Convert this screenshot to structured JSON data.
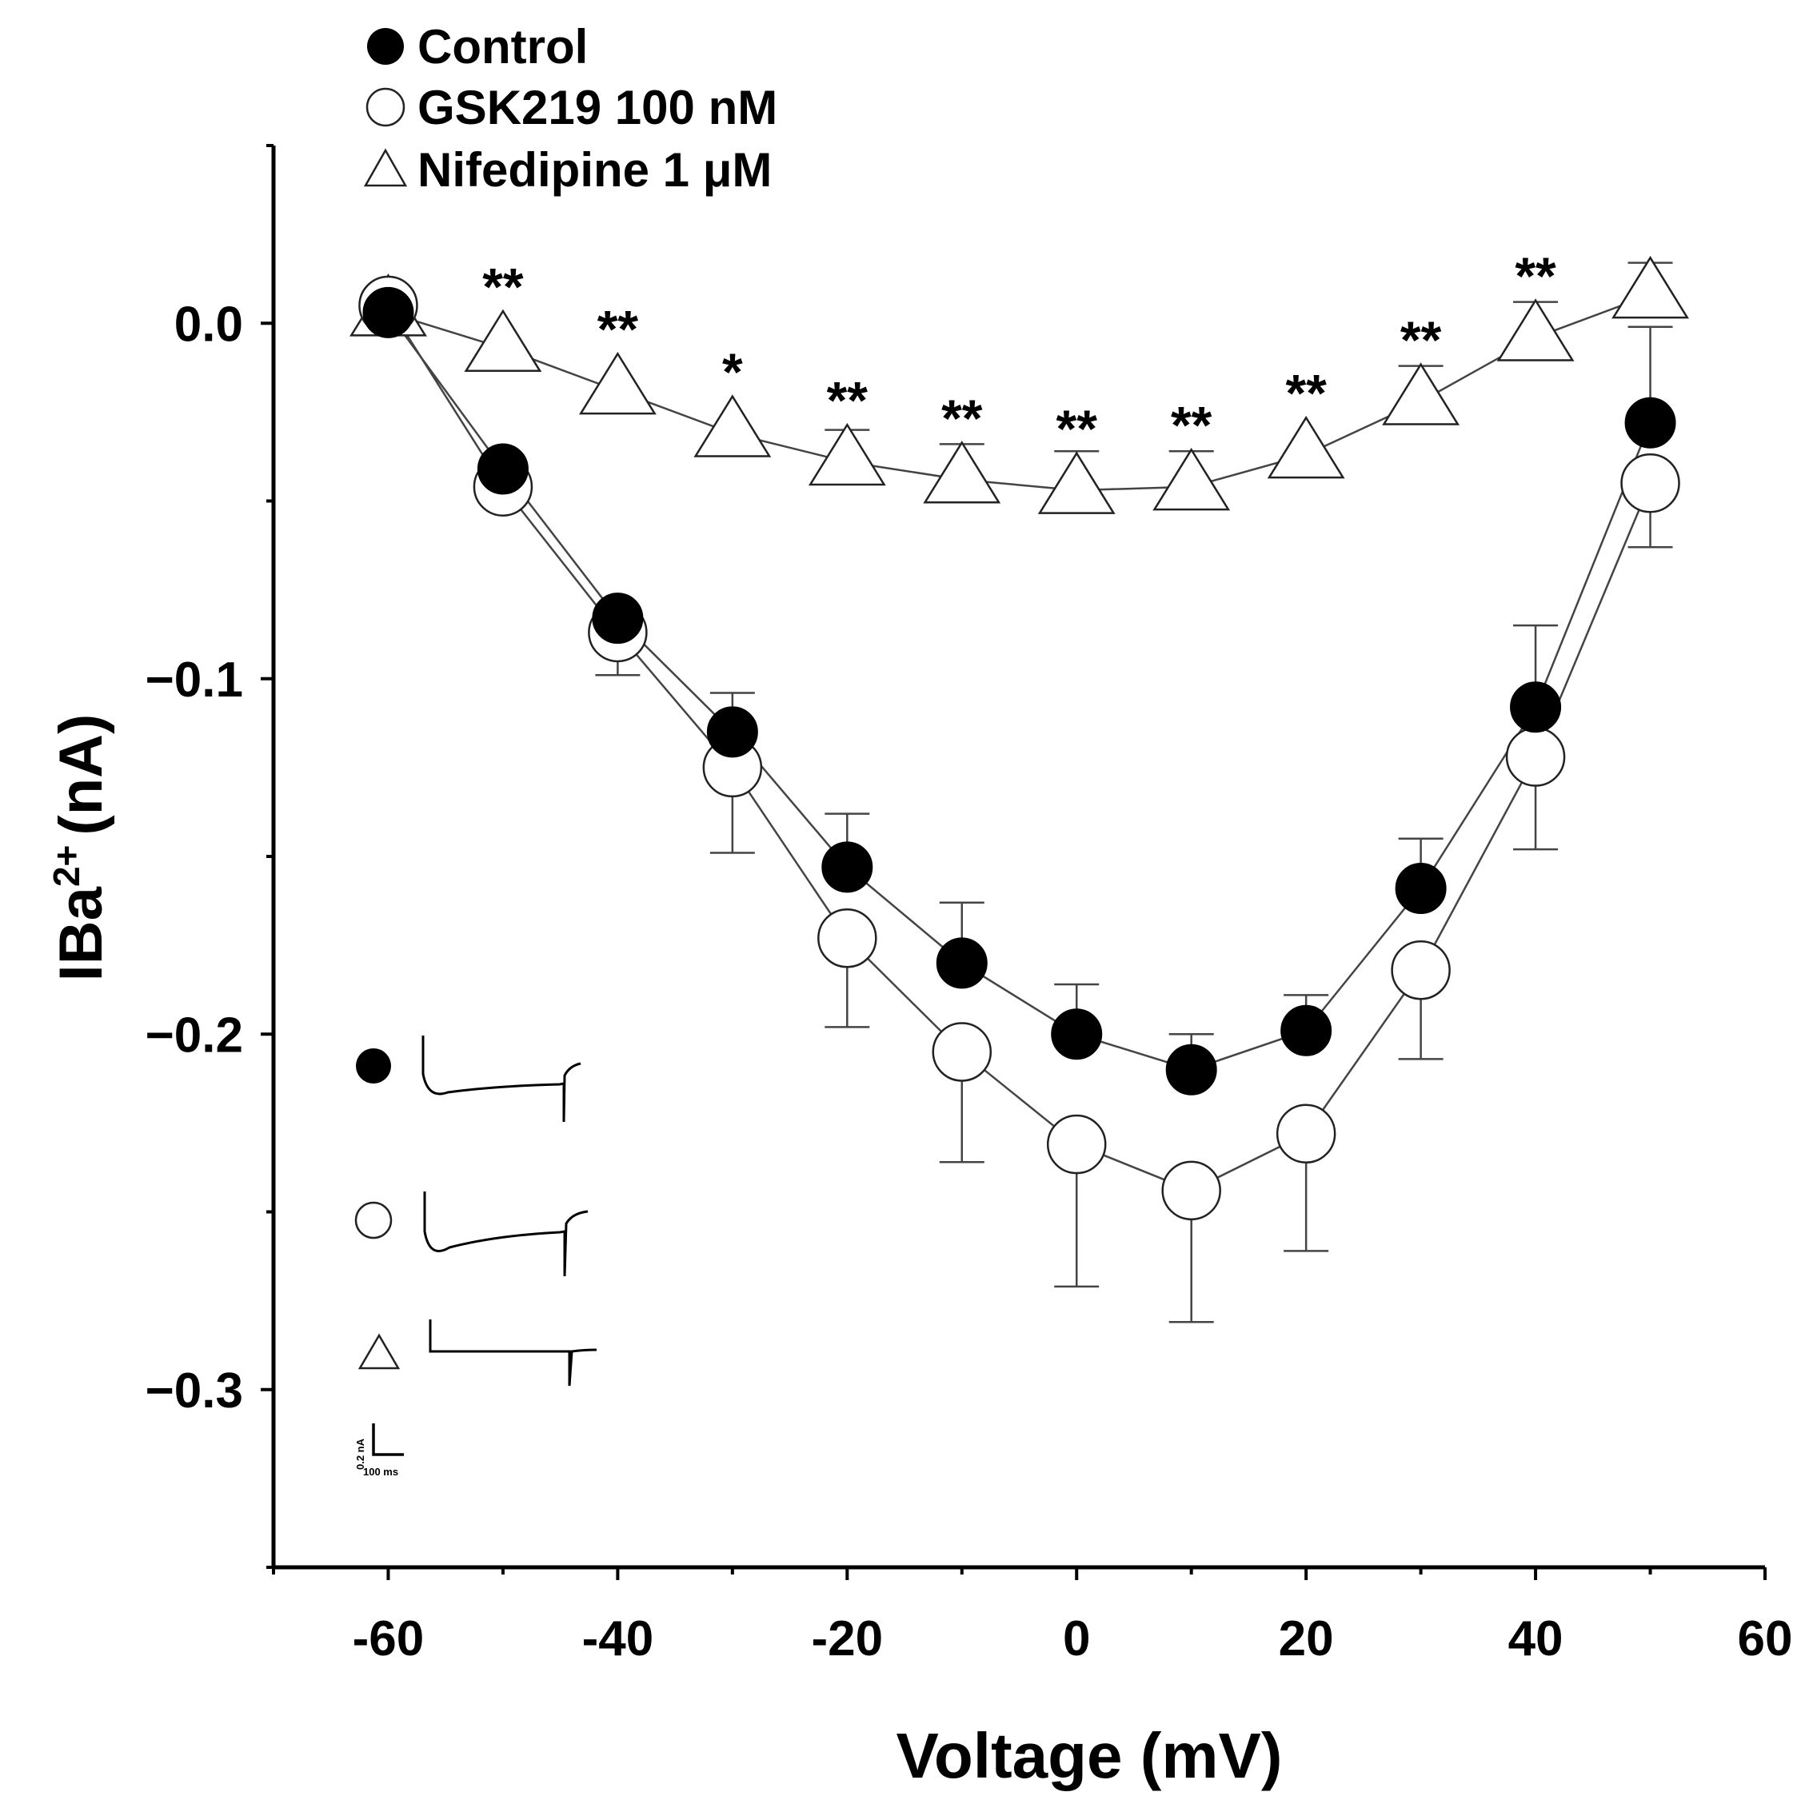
{
  "chart_data": {
    "type": "line",
    "title": "",
    "xlabel": "Voltage (mV)",
    "ylabel": "IBa",
    "ylabel_superscript": "2+",
    "ylabel_unit": "(nA)",
    "xlim": [
      -70,
      60
    ],
    "ylim": [
      -0.35,
      0.05
    ],
    "x_ticks": [
      -60,
      -40,
      -20,
      0,
      20,
      40,
      60
    ],
    "x_tick_labels": [
      "-60",
      "-40",
      "-20",
      "0",
      "20",
      "40",
      "60"
    ],
    "y_ticks": [
      0.0,
      -0.1,
      -0.2,
      -0.3
    ],
    "y_tick_labels": [
      "0.0",
      "−0.1",
      "−0.2",
      "−0.3"
    ],
    "x": [
      -60,
      -50,
      -40,
      -30,
      -20,
      -10,
      0,
      10,
      20,
      30,
      40,
      50
    ],
    "series": [
      {
        "name": "Control",
        "marker": "filled-circle",
        "values": [
          0.003,
          -0.041,
          -0.083,
          -0.115,
          -0.153,
          -0.18,
          -0.2,
          -0.21,
          -0.199,
          -0.159,
          -0.108,
          -0.028
        ],
        "error_down": [
          0,
          0,
          0,
          0,
          0,
          0,
          0,
          0,
          0,
          0,
          0,
          0
        ],
        "error_up": [
          0,
          0,
          0,
          0.011,
          0.015,
          0.017,
          0.014,
          0.01,
          0.01,
          0.014,
          0.023,
          0.027
        ]
      },
      {
        "name": "GSK219 100 nM",
        "marker": "open-circle",
        "values": [
          0.005,
          -0.046,
          -0.087,
          -0.125,
          -0.173,
          -0.205,
          -0.231,
          -0.244,
          -0.228,
          -0.182,
          -0.122,
          -0.045
        ],
        "error_down": [
          0,
          0,
          0.012,
          0.024,
          0.025,
          0.031,
          0.04,
          0.037,
          0.033,
          0.025,
          0.026,
          0.018
        ],
        "error_up": [
          0,
          0,
          0,
          0,
          0,
          0,
          0,
          0,
          0,
          0,
          0,
          0
        ]
      },
      {
        "name": "Nifedipine 1 μM",
        "marker": "open-triangle",
        "values": [
          0.003,
          -0.007,
          -0.019,
          -0.031,
          -0.039,
          -0.044,
          -0.047,
          -0.046,
          -0.037,
          -0.022,
          -0.004,
          0.008
        ],
        "error_down": [
          0,
          0,
          0,
          0,
          0,
          0,
          0,
          0,
          0,
          0,
          0,
          0
        ],
        "error_up": [
          0,
          0,
          0,
          0,
          0.009,
          0.01,
          0.011,
          0.01,
          0,
          0.01,
          0.01,
          0.009
        ]
      }
    ],
    "significance": [
      {
        "x": -50,
        "label": "**"
      },
      {
        "x": -40,
        "label": "**"
      },
      {
        "x": -30,
        "label": "*"
      },
      {
        "x": -20,
        "label": "**"
      },
      {
        "x": -10,
        "label": "**"
      },
      {
        "x": 0,
        "label": "**"
      },
      {
        "x": 10,
        "label": "**"
      },
      {
        "x": 20,
        "label": "**"
      },
      {
        "x": 30,
        "label": "**"
      },
      {
        "x": 40,
        "label": "**"
      }
    ],
    "legend": {
      "placement": "top-left",
      "entries": [
        "Control",
        "GSK219 100 nM",
        "Nifedipine 1 μM"
      ]
    },
    "grid": false,
    "inset": {
      "scale_bar_y_label": "0.2 nA",
      "scale_bar_x_label": "100 ms"
    },
    "colors": {
      "ink": "#000000",
      "line": "#444444",
      "background": "#ffffff"
    }
  }
}
